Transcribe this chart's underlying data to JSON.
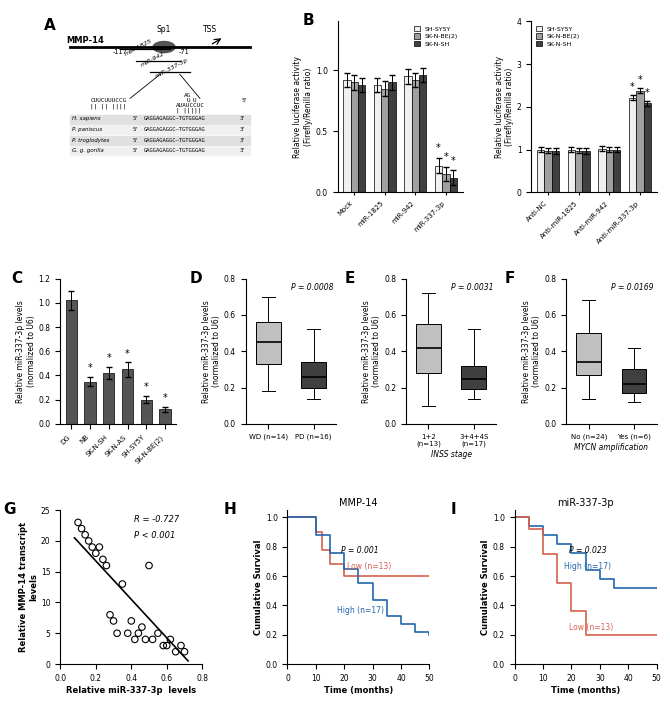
{
  "panel_B_left": {
    "SH_SY5Y": [
      0.92,
      0.88,
      0.95,
      0.22
    ],
    "SK_N_BE2": [
      0.9,
      0.85,
      0.92,
      0.15
    ],
    "SK_N_SH": [
      0.88,
      0.9,
      0.96,
      0.12
    ],
    "err": 0.06,
    "ylabel": "Relative luciferase activity\n(Firefly/Renilla ratio)",
    "ylim": [
      0,
      1.4
    ],
    "yticks": [
      0,
      0.5,
      1.0
    ],
    "xlabels": [
      "Mock",
      "miR-1825",
      "miR-942",
      "miR-337-3p"
    ]
  },
  "panel_B_right": {
    "SH_SY5Y": [
      1.0,
      1.0,
      1.02,
      2.22
    ],
    "SK_N_BE2": [
      0.98,
      0.98,
      1.0,
      2.38
    ],
    "SK_N_SH": [
      0.97,
      0.97,
      1.0,
      2.08
    ],
    "err": 0.06,
    "ylabel": "Relative luciferase activity\n(Firefly/Renilla ratio)",
    "ylim": [
      0,
      4.0
    ],
    "yticks": [
      0,
      1,
      2,
      3,
      4
    ],
    "xlabels": [
      "Anti-NC",
      "Anti-miR-1825",
      "Anti-miR-942",
      "Anti-miR-337-3p"
    ]
  },
  "panel_C": {
    "categories": [
      "DG",
      "NB",
      "SK-N-SH",
      "SK-N-AS",
      "SH-SY5Y",
      "SK-N-BE(2)"
    ],
    "values": [
      1.02,
      0.35,
      0.42,
      0.45,
      0.2,
      0.12
    ],
    "errors": [
      0.08,
      0.04,
      0.05,
      0.06,
      0.03,
      0.02
    ],
    "ylabel": "Relative miR-337-3p levels\n(normalized to U6)",
    "ylim": [
      0,
      1.2
    ],
    "yticks": [
      0,
      0.2,
      0.4,
      0.6,
      0.8,
      1.0,
      1.2
    ],
    "stars": [
      false,
      true,
      true,
      true,
      true,
      true
    ]
  },
  "panel_D": {
    "label": "P = 0.0008",
    "WD_q1": 0.33,
    "WD_med": 0.45,
    "WD_q3": 0.56,
    "WD_min": 0.18,
    "WD_max": 0.7,
    "PD_q1": 0.2,
    "PD_med": 0.26,
    "PD_q3": 0.34,
    "PD_min": 0.14,
    "PD_max": 0.52,
    "xlabel_WD": "WD (n=14)",
    "xlabel_PD": "PD (n=16)",
    "ylabel": "Relative miR-337-3p levels\n(normalized to U6)",
    "ylim": [
      0.0,
      0.8
    ],
    "yticks": [
      0.0,
      0.2,
      0.4,
      0.6,
      0.8
    ]
  },
  "panel_E": {
    "label": "P = 0.0031",
    "G1_q1": 0.28,
    "G1_med": 0.42,
    "G1_q3": 0.55,
    "G1_min": 0.1,
    "G1_max": 0.72,
    "G2_q1": 0.19,
    "G2_med": 0.25,
    "G2_q3": 0.32,
    "G2_min": 0.14,
    "G2_max": 0.52,
    "xlabel_G1": "1+2\n(n=13)",
    "xlabel_G2": "3+4+4S\n(n=17)",
    "ylabel": "Relative miR-337-3p levels\n(normalized to U6)",
    "ylim": [
      0.0,
      0.8
    ],
    "yticks": [
      0.0,
      0.2,
      0.4,
      0.6,
      0.8
    ],
    "subtitle": "INSS stage"
  },
  "panel_F": {
    "label": "P = 0.0169",
    "G1_q1": 0.27,
    "G1_med": 0.34,
    "G1_q3": 0.5,
    "G1_min": 0.14,
    "G1_max": 0.68,
    "G2_q1": 0.17,
    "G2_med": 0.22,
    "G2_q3": 0.3,
    "G2_min": 0.12,
    "G2_max": 0.42,
    "xlabel_G1": "No (n=24)",
    "xlabel_G2": "Yes (n=6)",
    "ylabel": "Relative miR-337-3p levels\n(normalized to U6)",
    "ylim": [
      0.0,
      0.8
    ],
    "yticks": [
      0.0,
      0.2,
      0.4,
      0.6,
      0.8
    ],
    "subtitle": "MYCN amplification"
  },
  "panel_G": {
    "xlabel": "Relative miR-337-3p  levels",
    "ylabel": "Relative MMP-14 transcript\nlevels",
    "R": -0.727,
    "P": "< 0.001",
    "xlim": [
      0,
      0.8
    ],
    "ylim": [
      0,
      25
    ],
    "scatter_x": [
      0.1,
      0.12,
      0.14,
      0.16,
      0.18,
      0.2,
      0.22,
      0.24,
      0.26,
      0.28,
      0.3,
      0.32,
      0.35,
      0.38,
      0.4,
      0.42,
      0.44,
      0.46,
      0.48,
      0.5,
      0.52,
      0.55,
      0.58,
      0.6,
      0.62,
      0.65,
      0.68,
      0.7
    ],
    "scatter_y": [
      23,
      22,
      21,
      20,
      19,
      18,
      19,
      17,
      16,
      8,
      7,
      5,
      13,
      5,
      7,
      4,
      5,
      6,
      4,
      16,
      4,
      5,
      3,
      3,
      4,
      2,
      3,
      2
    ],
    "line_x": [
      0.08,
      0.72
    ],
    "line_y": [
      20.5,
      0.5
    ]
  },
  "panel_H": {
    "title": "MMP-14",
    "pval": "P = 0.001",
    "xlabel": "Time (months)",
    "ylabel": "Cumulative Survival",
    "xlim": [
      0,
      50
    ],
    "high_label": "High (n=17)",
    "low_label": "Low (n=13)",
    "high_color": "#2166ac",
    "low_color": "#d6604d",
    "high_x": [
      0,
      5,
      10,
      15,
      20,
      25,
      30,
      35,
      40,
      45,
      50
    ],
    "high_y": [
      1.0,
      1.0,
      0.88,
      0.76,
      0.65,
      0.55,
      0.44,
      0.33,
      0.27,
      0.22,
      0.2
    ],
    "low_x": [
      0,
      5,
      10,
      12,
      15,
      20,
      25,
      30,
      35,
      40,
      45,
      50
    ],
    "low_y": [
      1.0,
      1.0,
      0.9,
      0.78,
      0.68,
      0.6,
      0.6,
      0.6,
      0.6,
      0.6,
      0.6,
      0.6
    ],
    "yticks": [
      0.0,
      0.2,
      0.4,
      0.6,
      0.8,
      1.0
    ],
    "xticks": [
      0.0,
      10.0,
      20.0,
      30.0,
      40.0,
      50.0
    ]
  },
  "panel_I": {
    "title": "miR-337-3p",
    "pval": "P = 0.023",
    "xlabel": "Time (months)",
    "ylabel": "Cumulative Survival",
    "xlim": [
      0,
      50
    ],
    "high_label": "High (n=17)",
    "low_label": "Low (n=13)",
    "high_color": "#2166ac",
    "low_color": "#d6604d",
    "high_x": [
      0,
      5,
      10,
      15,
      20,
      25,
      30,
      35,
      40,
      45,
      50
    ],
    "high_y": [
      1.0,
      0.94,
      0.88,
      0.82,
      0.76,
      0.64,
      0.58,
      0.52,
      0.52,
      0.52,
      0.52
    ],
    "low_x": [
      0,
      5,
      10,
      15,
      20,
      25,
      30,
      35,
      40,
      45,
      50
    ],
    "low_y": [
      1.0,
      0.92,
      0.75,
      0.55,
      0.36,
      0.2,
      0.2,
      0.2,
      0.2,
      0.2,
      0.2
    ],
    "yticks": [
      0.0,
      0.2,
      0.4,
      0.6,
      0.8,
      1.0
    ],
    "xticks": [
      0.0,
      10.0,
      20.0,
      30.0,
      40.0,
      50.0
    ]
  },
  "bar_colors": [
    "#f0f0f0",
    "#a0a0a0",
    "#404040"
  ],
  "box_colors_light": "#c0c0c0",
  "box_colors_dark": "#404040"
}
